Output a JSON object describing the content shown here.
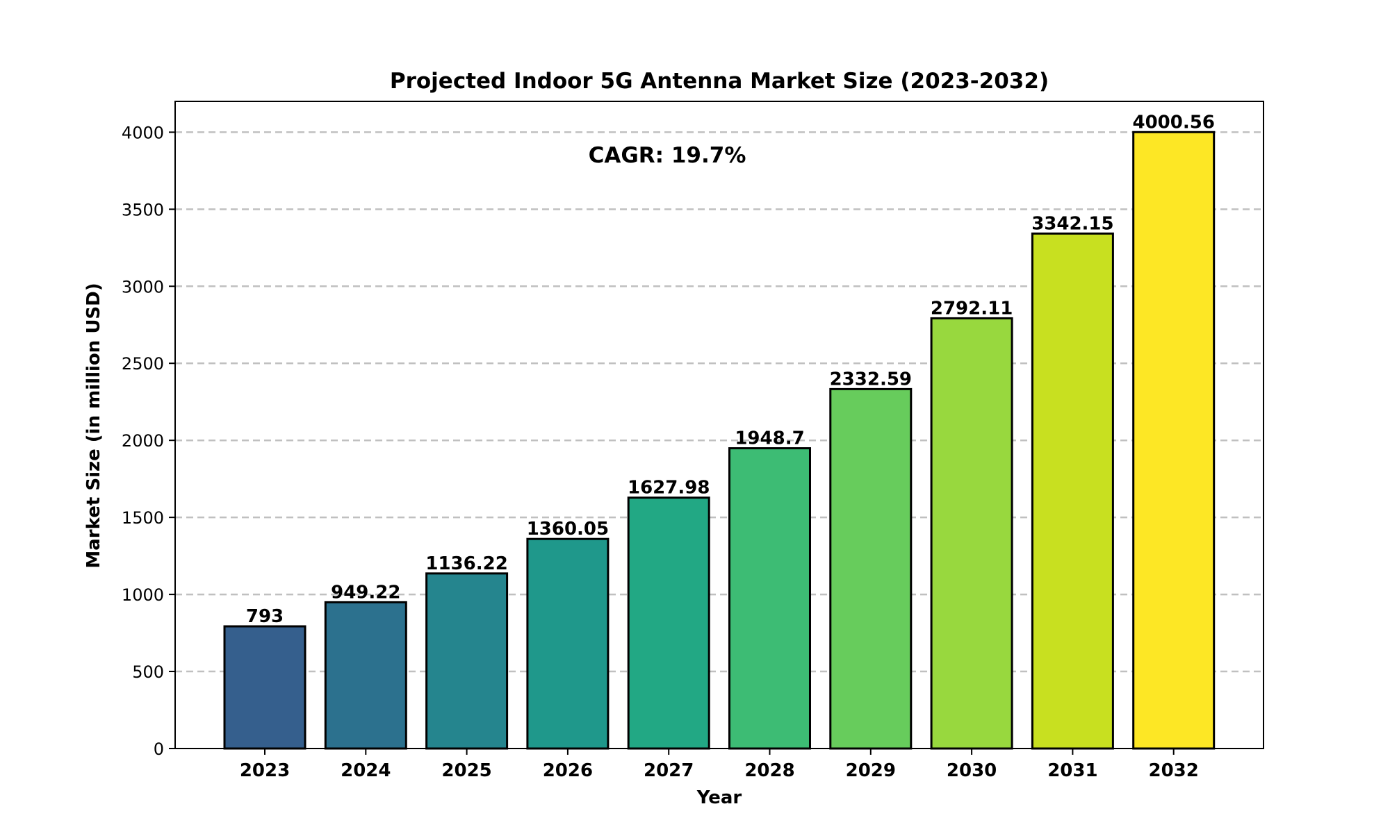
{
  "chart_data": {
    "type": "bar",
    "title": "Projected Indoor 5G Antenna Market Size (2023-2032)",
    "xlabel": "Year",
    "ylabel": "Market Size (in million USD)",
    "annotation": "CAGR: 19.7%",
    "categories": [
      "2023",
      "2024",
      "2025",
      "2026",
      "2027",
      "2028",
      "2029",
      "2030",
      "2031",
      "2032"
    ],
    "values": [
      793,
      949.22,
      1136.22,
      1360.05,
      1627.98,
      1948.7,
      2332.59,
      2792.11,
      3342.15,
      4000.56
    ],
    "value_labels": [
      "793",
      "949.22",
      "1136.22",
      "1360.05",
      "1627.98",
      "1948.7",
      "2332.59",
      "2792.11",
      "3342.15",
      "4000.56"
    ],
    "ylim": [
      0,
      4200
    ],
    "yticks": [
      0,
      500,
      1000,
      1500,
      2000,
      2500,
      3000,
      3500,
      4000
    ],
    "ytick_labels": [
      "0",
      "500",
      "1000",
      "1500",
      "2000",
      "2500",
      "3000",
      "3500",
      "4000"
    ],
    "grid": "y-dashed",
    "legend": "none",
    "colors": [
      "#355f8d",
      "#2c718e",
      "#25858e",
      "#1f988b",
      "#22a884",
      "#3dbc74",
      "#67cc5c",
      "#98d83e",
      "#c8e020",
      "#fde725"
    ],
    "edge_color": "#000000",
    "grid_color": "#c0c0c0"
  }
}
